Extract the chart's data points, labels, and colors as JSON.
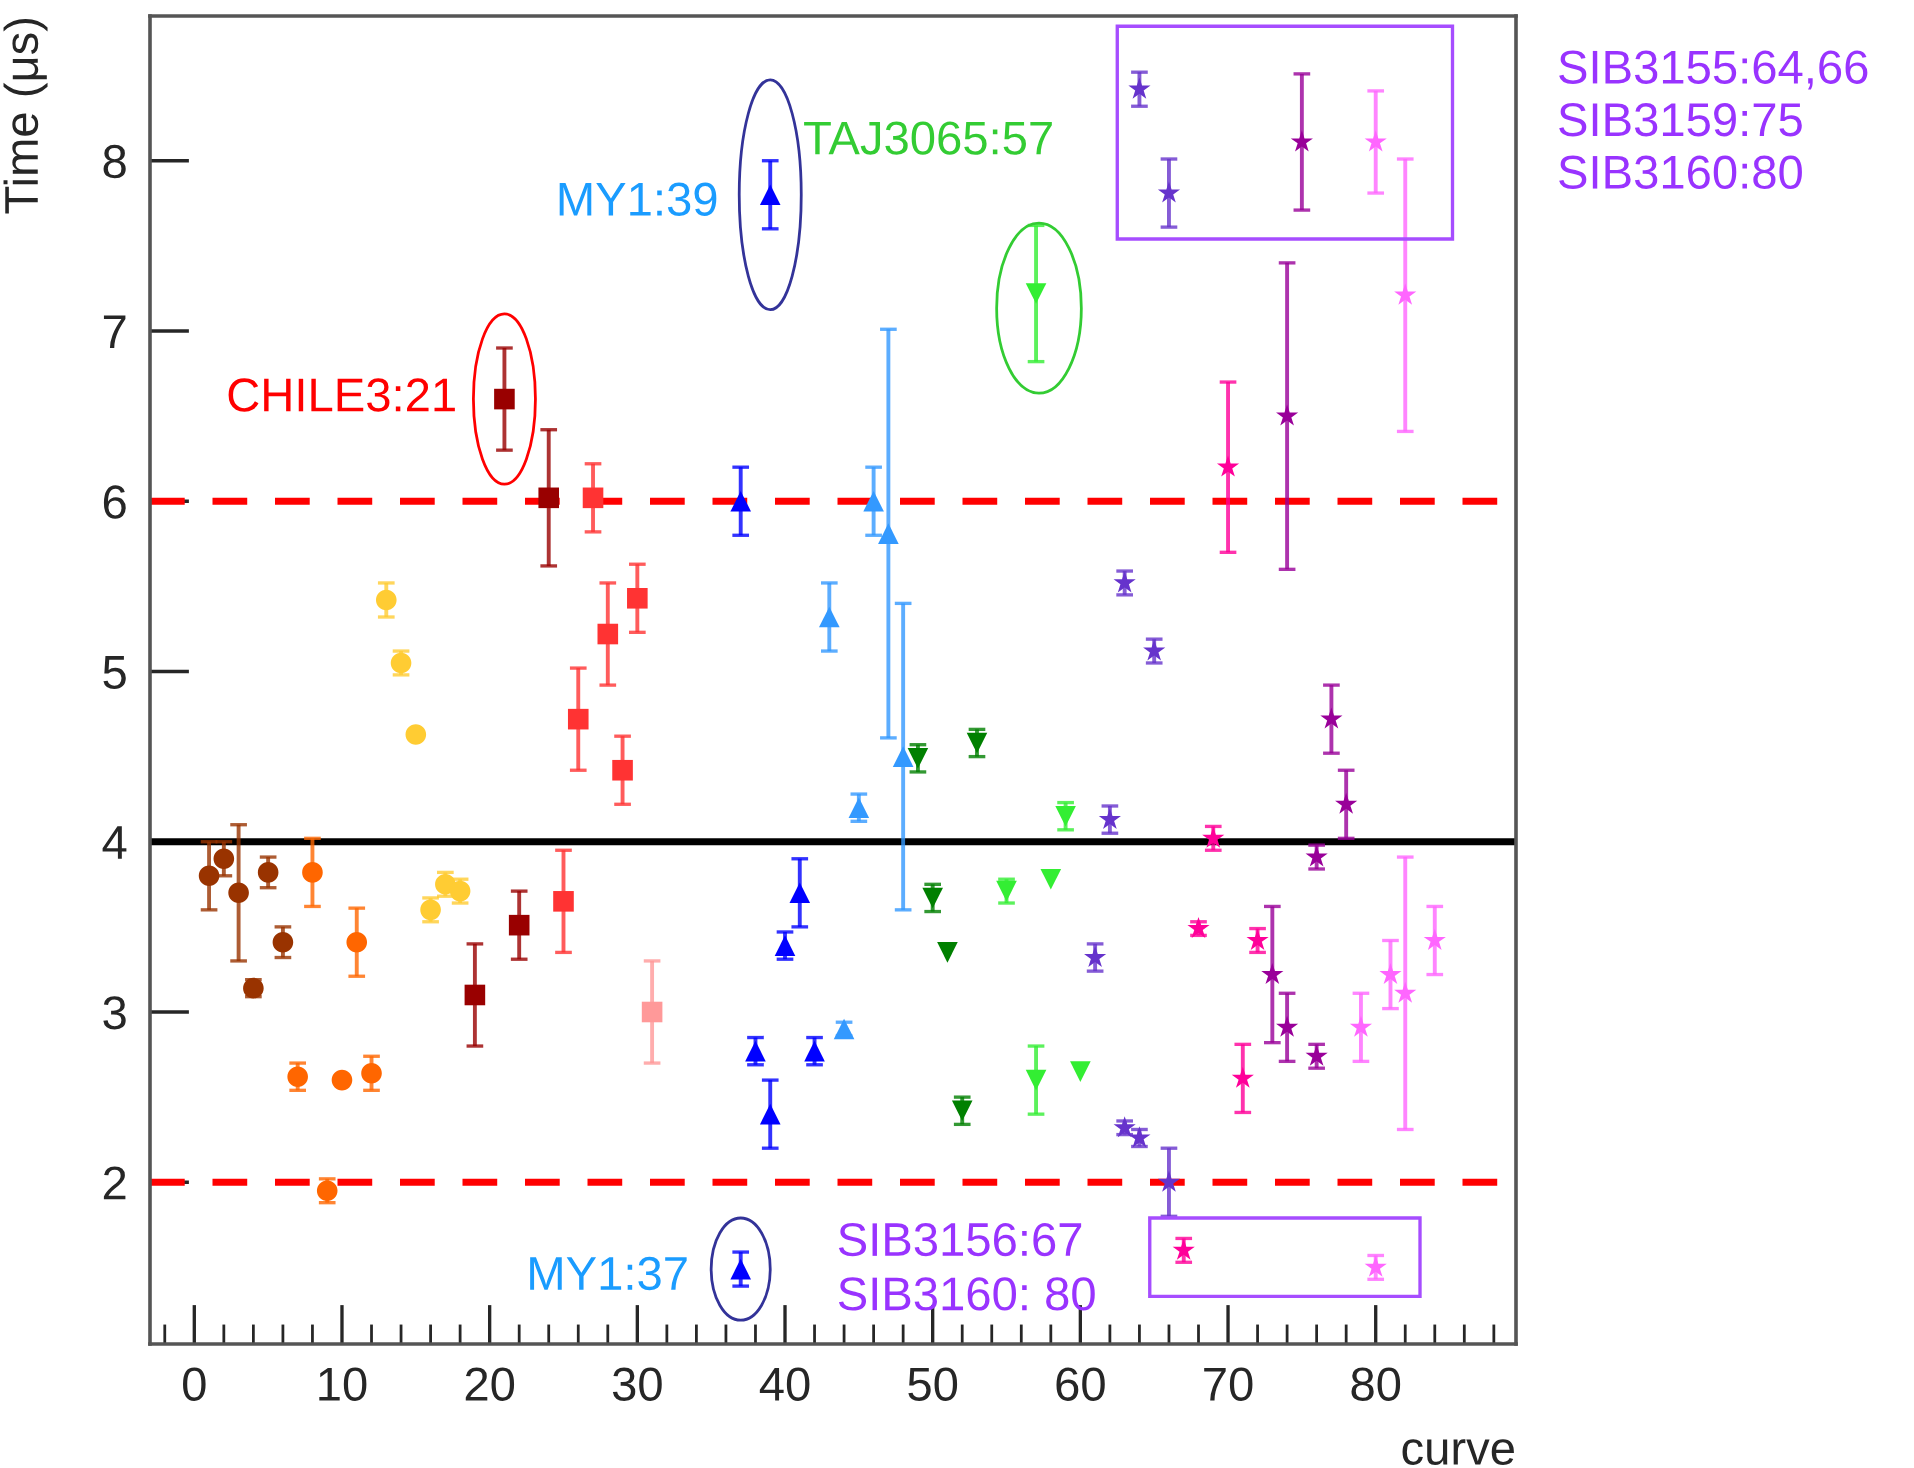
{
  "chart_data": {
    "type": "scatter",
    "xlabel": "curve",
    "ylabel": "Time (μs)",
    "xlim": [
      -3,
      89.5
    ],
    "ylim": [
      1.05,
      8.85
    ],
    "xticks": [
      0,
      10,
      20,
      30,
      40,
      50,
      60,
      70,
      80
    ],
    "yticks": [
      2,
      3,
      4,
      5,
      6,
      7,
      8
    ],
    "series": [
      {
        "color": "#993300",
        "marker": "circle",
        "x": [
          1,
          2,
          3,
          4,
          5,
          6
        ],
        "values": [
          3.8,
          3.9,
          3.7,
          3.14,
          3.82,
          3.41
        ],
        "errors": [
          0.2,
          0.1,
          0.4,
          0.05,
          0.09,
          0.09
        ]
      },
      {
        "color": "#ff6600",
        "marker": "circle",
        "x": [
          7,
          8,
          9,
          10,
          11,
          12
        ],
        "values": [
          2.62,
          3.82,
          1.95,
          2.6,
          3.41,
          2.64
        ],
        "errors": [
          0.08,
          0.2,
          0.07,
          null,
          0.2,
          0.1
        ]
      },
      {
        "color": "#ffcc33",
        "marker": "circle",
        "x": [
          13,
          14,
          15,
          16,
          17,
          18
        ],
        "values": [
          5.42,
          5.05,
          4.63,
          3.6,
          3.75,
          3.71
        ],
        "errors": [
          0.1,
          0.07,
          null,
          0.07,
          0.07,
          0.07
        ]
      },
      {
        "color": "#990000",
        "marker": "square",
        "x": [
          19,
          21,
          22,
          24
        ],
        "values": [
          3.1,
          6.6,
          3.51,
          6.02
        ],
        "errors": [
          0.3,
          0.3,
          0.2,
          0.4
        ]
      },
      {
        "color": "#ff3333",
        "marker": "square",
        "x": [
          25,
          26,
          27,
          28,
          29,
          30
        ],
        "values": [
          3.65,
          4.72,
          6.02,
          5.22,
          4.42,
          5.43
        ],
        "errors": [
          0.3,
          0.3,
          0.2,
          0.3,
          0.2,
          0.2
        ]
      },
      {
        "color": "#ff9999",
        "marker": "square",
        "x": [
          31
        ],
        "values": [
          3.0
        ],
        "errors": [
          0.3
        ]
      },
      {
        "color": "#0000ff",
        "marker": "triangle",
        "x": [
          37,
          37,
          38,
          39,
          39,
          40,
          41,
          42
        ],
        "values": [
          6.0,
          1.49,
          2.77,
          7.8,
          2.4,
          3.39,
          3.7,
          2.77
        ],
        "errors": [
          0.2,
          0.1,
          0.08,
          0.2,
          0.2,
          0.08,
          0.2,
          0.08
        ]
      },
      {
        "color": "#3399ff",
        "marker": "triangle",
        "x": [
          43,
          44,
          45,
          46,
          47,
          48
        ],
        "values": [
          5.32,
          2.9,
          4.2,
          6.0,
          5.81,
          4.5
        ],
        "errors": [
          0.2,
          0.04,
          0.08,
          0.2,
          1.2,
          0.9
        ]
      },
      {
        "color": "#008000",
        "marker": "triangle-down",
        "x": [
          49,
          50,
          51,
          52,
          53
        ],
        "values": [
          4.49,
          3.67,
          3.35,
          2.42,
          4.58
        ],
        "errors": [
          0.08,
          0.08,
          null,
          0.08,
          0.08
        ]
      },
      {
        "color": "#33ee33",
        "marker": "triangle-down",
        "x": [
          55,
          57,
          57,
          58,
          59,
          60
        ],
        "values": [
          3.71,
          7.22,
          2.6,
          3.78,
          4.15,
          2.65
        ],
        "errors": [
          0.07,
          0.4,
          0.2,
          null,
          0.08,
          null
        ]
      },
      {
        "color": "#6633cc",
        "marker": "star",
        "x": [
          61,
          62,
          63,
          63,
          64,
          64,
          65,
          66,
          66
        ],
        "values": [
          3.32,
          4.13,
          5.52,
          2.32,
          8.42,
          2.26,
          5.12,
          2.0,
          7.81
        ],
        "errors": [
          0.08,
          0.08,
          0.07,
          0.04,
          0.1,
          0.05,
          0.07,
          0.2,
          0.2
        ]
      },
      {
        "color": "#ff0099",
        "marker": "star",
        "x": [
          67,
          68,
          69,
          70,
          71,
          72
        ],
        "values": [
          1.6,
          3.49,
          4.02,
          6.2,
          2.61,
          3.42
        ],
        "errors": [
          0.07,
          0.04,
          0.07,
          0.5,
          0.2,
          0.07
        ]
      },
      {
        "color": "#990099",
        "marker": "star",
        "x": [
          73,
          74,
          74,
          75,
          76,
          76,
          77,
          78
        ],
        "values": [
          3.22,
          2.91,
          6.5,
          8.11,
          2.74,
          3.91,
          4.72,
          4.22
        ],
        "errors": [
          0.4,
          0.2,
          0.9,
          0.4,
          0.07,
          0.07,
          0.2,
          0.2
        ]
      },
      {
        "color": "#ff66ff",
        "marker": "star",
        "x": [
          79,
          80,
          80,
          81,
          82,
          82,
          84
        ],
        "values": [
          2.91,
          8.11,
          1.5,
          3.22,
          3.11,
          7.21,
          3.42
        ],
        "errors": [
          0.2,
          0.3,
          0.07,
          0.2,
          0.8,
          0.8,
          0.2
        ]
      }
    ],
    "ref_lines": [
      {
        "axis": "y",
        "value": 6,
        "color": "#ff0000",
        "line_style": "dashed"
      },
      {
        "axis": "y",
        "value": 4,
        "color": "#000000",
        "line_style": "solid"
      },
      {
        "axis": "y",
        "value": 2,
        "color": "#ff0000",
        "line_style": "dashed"
      }
    ],
    "annotations": [
      {
        "text": "CHILE3:21",
        "x": 21,
        "y": 6.6
      },
      {
        "text": "MY1:39",
        "x": 39,
        "y": 7.8
      },
      "TAJ3065:57",
      {
        "text": "MY1:37",
        "x": 37,
        "y": 1.49
      },
      "SIB3156:67\nSIB3160: 80",
      "SIB3155:64,66\nSIB3159:75\nSIB3160:80"
    ]
  }
}
